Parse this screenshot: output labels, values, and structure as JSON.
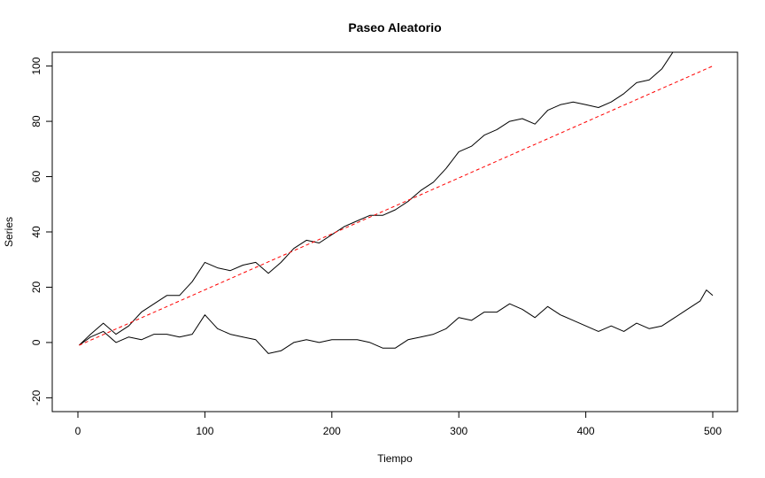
{
  "chart_data": {
    "type": "line",
    "title": "Paseo Aleatorio",
    "xlabel": "Tiempo",
    "ylabel": "Series",
    "xlim": [
      0,
      500
    ],
    "ylim": [
      -25,
      105
    ],
    "xticks": [
      0,
      100,
      200,
      300,
      400,
      500
    ],
    "yticks": [
      -20,
      0,
      20,
      40,
      60,
      80,
      100
    ],
    "grid": false,
    "legend": "none",
    "series": [
      {
        "style": "solid",
        "color": "#000000",
        "x": [
          1,
          10,
          20,
          30,
          40,
          50,
          60,
          70,
          80,
          90,
          100,
          110,
          120,
          130,
          140,
          150,
          160,
          170,
          180,
          190,
          200,
          210,
          220,
          230,
          240,
          250,
          260,
          270,
          280,
          290,
          300,
          310,
          320,
          330,
          340,
          350,
          360,
          370,
          380,
          390,
          400,
          410,
          420,
          430,
          440,
          450,
          460,
          470
        ],
        "values": [
          -1,
          3,
          7,
          3,
          6,
          11,
          14,
          17,
          17,
          22,
          29,
          27,
          26,
          28,
          29,
          25,
          29,
          34,
          37,
          36,
          39,
          42,
          44,
          46,
          46,
          48,
          51,
          55,
          58,
          63,
          69,
          71,
          75,
          77,
          80,
          81,
          79,
          84,
          86,
          87,
          86,
          85,
          87,
          90,
          94,
          95,
          99,
          106
        ]
      },
      {
        "style": "solid",
        "color": "#000000",
        "x": [
          1,
          10,
          20,
          30,
          40,
          50,
          60,
          70,
          80,
          90,
          100,
          110,
          120,
          130,
          140,
          150,
          160,
          170,
          180,
          190,
          200,
          210,
          220,
          230,
          240,
          250,
          260,
          270,
          280,
          290,
          300,
          310,
          320,
          330,
          340,
          350,
          360,
          370,
          380,
          390,
          400,
          410,
          420,
          430,
          440,
          450,
          460,
          470,
          480,
          490,
          495,
          500
        ],
        "values": [
          -1,
          2,
          4,
          0,
          2,
          1,
          3,
          3,
          2,
          3,
          10,
          5,
          3,
          2,
          1,
          -4,
          -3,
          0,
          1,
          0,
          1,
          1,
          1,
          0,
          -2,
          -2,
          1,
          2,
          3,
          5,
          9,
          8,
          11,
          11,
          14,
          12,
          9,
          13,
          10,
          8,
          6,
          4,
          6,
          4,
          7,
          5,
          6,
          9,
          12,
          15,
          19,
          17
        ]
      },
      {
        "style": "dashed",
        "color": "#ff0000",
        "x": [
          1,
          500
        ],
        "values": [
          -1,
          100
        ]
      }
    ]
  }
}
